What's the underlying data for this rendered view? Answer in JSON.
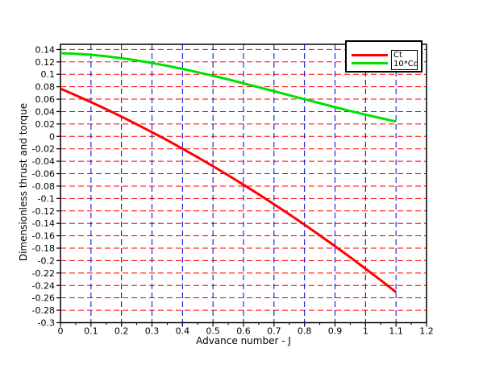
{
  "figure": {
    "background_color": "#ffffff"
  },
  "legend": {
    "entries": [
      {
        "label": "Ct",
        "color": "#ff0000"
      },
      {
        "label": "10*Cq",
        "color": "#00e000"
      }
    ]
  },
  "chart_data": {
    "type": "line",
    "title": "",
    "xlabel": "Advance number - J",
    "ylabel": "Dimensionless thrust and torque",
    "xlim": [
      0,
      1.2
    ],
    "ylim": [
      -0.3,
      0.1483
    ],
    "grid": {
      "style": "dashed",
      "horizontal_color": "#ff0000",
      "vertical_color": "#0000cc"
    },
    "axis_color": "#000000",
    "legend_position": "top-right",
    "x_tick_values": [
      0,
      0.1,
      0.2,
      0.3,
      0.4,
      0.5,
      0.6,
      0.7,
      0.8,
      0.9,
      1,
      1.1,
      1.2
    ],
    "x_tick_labels": [
      "0",
      "0.1",
      "0.2",
      "0.3",
      "0.4",
      "0.5",
      "0.6",
      "0.7",
      "0.8",
      "0.9",
      "1",
      "1.1",
      "1.2"
    ],
    "y_tick_values": [
      0.14,
      0.12,
      0.1,
      0.08,
      0.06,
      0.04,
      0.02,
      0,
      -0.02,
      -0.04,
      -0.06,
      -0.08,
      -0.1,
      -0.12,
      -0.14,
      -0.16,
      -0.18,
      -0.2,
      -0.22,
      -0.24,
      -0.26,
      -0.28,
      -0.3
    ],
    "y_tick_labels": [
      "0.14",
      "0.12",
      "0.1",
      "0.08",
      "0.06",
      "0.04",
      "0.02",
      "0",
      "-0.02",
      "-0.04",
      "-0.06",
      "-0.08",
      "-0.1",
      "-0.12",
      "-0.14",
      "-0.16",
      "-0.18",
      "-0.2",
      "-0.22",
      "-0.24",
      "-0.26",
      "-0.28",
      "-0.3"
    ],
    "series": [
      {
        "name": "Ct",
        "color": "#ff0000",
        "width": 3,
        "x": [
          0,
          0.05,
          0.1,
          0.15,
          0.2,
          0.25,
          0.3,
          0.35,
          0.4,
          0.45,
          0.5,
          0.55,
          0.6,
          0.65,
          0.7,
          0.75,
          0.8,
          0.85,
          0.9,
          0.95,
          1,
          1.05,
          1.1
        ],
        "y": [
          0.077,
          0.0663,
          0.0552,
          0.0437,
          0.0318,
          0.0195,
          0.0068,
          -0.0063,
          -0.0198,
          -0.0337,
          -0.048,
          -0.0627,
          -0.0778,
          -0.0933,
          -0.1092,
          -0.1255,
          -0.1422,
          -0.1593,
          -0.1768,
          -0.1947,
          -0.213,
          -0.2317,
          -0.2508
        ]
      },
      {
        "name": "10*Cq",
        "color": "#00e000",
        "width": 3,
        "x": [
          0,
          0.05,
          0.1,
          0.15,
          0.2,
          0.25,
          0.3,
          0.35,
          0.4,
          0.45,
          0.5,
          0.55,
          0.6,
          0.65,
          0.7,
          0.75,
          0.8,
          0.85,
          0.9,
          0.95,
          1,
          1.05,
          1.1
        ],
        "y": [
          0.134,
          0.1331,
          0.1314,
          0.129,
          0.126,
          0.1224,
          0.1183,
          0.1137,
          0.1087,
          0.1033,
          0.0976,
          0.0917,
          0.0855,
          0.0792,
          0.0728,
          0.0663,
          0.0598,
          0.0534,
          0.0471,
          0.0409,
          0.035,
          0.0294,
          0.024
        ]
      }
    ]
  }
}
